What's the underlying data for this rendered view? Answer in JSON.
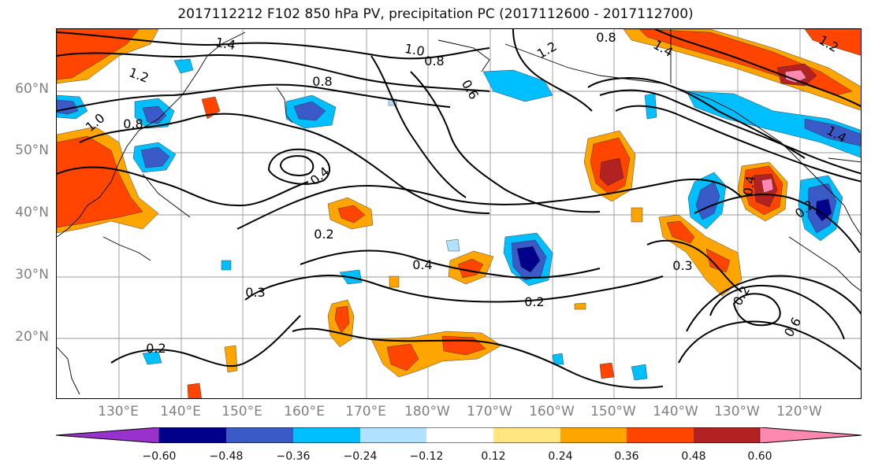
{
  "title": "2017112212 F102 850 hPa PV, precipitation PC (2017112600 - 2017112700)",
  "latitude_labels": [
    "60°N",
    "50°N",
    "40°N",
    "30°N",
    "20°N"
  ],
  "longitude_labels": [
    "130°E",
    "140°E",
    "150°E",
    "160°E",
    "170°E",
    "180°W",
    "170°W",
    "160°W",
    "150°W",
    "140°W",
    "130°W",
    "120°W"
  ],
  "contour_labels": [
    "1.4",
    "1.2",
    "1.0",
    "0.8",
    "0.8",
    "0.8",
    "0.6",
    "1.2",
    "0.8",
    "1.4",
    "1.2",
    "1.0",
    "0.4",
    "0.2",
    "0.4",
    "0.3",
    "0.2",
    "0.2",
    "0.3",
    "0.2",
    "0.6",
    "0.4",
    "0.2",
    "1.4"
  ],
  "colorbar": {
    "tick_labels": [
      "−0.60",
      "−0.48",
      "−0.36",
      "−0.24",
      "−0.12",
      "0.12",
      "0.24",
      "0.36",
      "0.48",
      "0.60"
    ],
    "colors": [
      "#9932CC",
      "#00008B",
      "#3A5BC7",
      "#00BFFF",
      "#B0E2FF",
      "#FFFFFF",
      "#FFE680",
      "#FFA500",
      "#FF4500",
      "#B22222",
      "#FF88B0"
    ]
  },
  "shading_colors": {
    "neg_0_60": "#9932CC",
    "neg_0_48": "#00008B",
    "neg_0_36": "#3A5BC7",
    "neg_0_24": "#00BFFF",
    "neg_0_12": "#B0E2FF",
    "pos_0_12": "#FFE680",
    "pos_0_24": "#FFA500",
    "pos_0_36": "#FF4500",
    "pos_0_48": "#B22222",
    "pos_0_60": "#FF88B0"
  }
}
